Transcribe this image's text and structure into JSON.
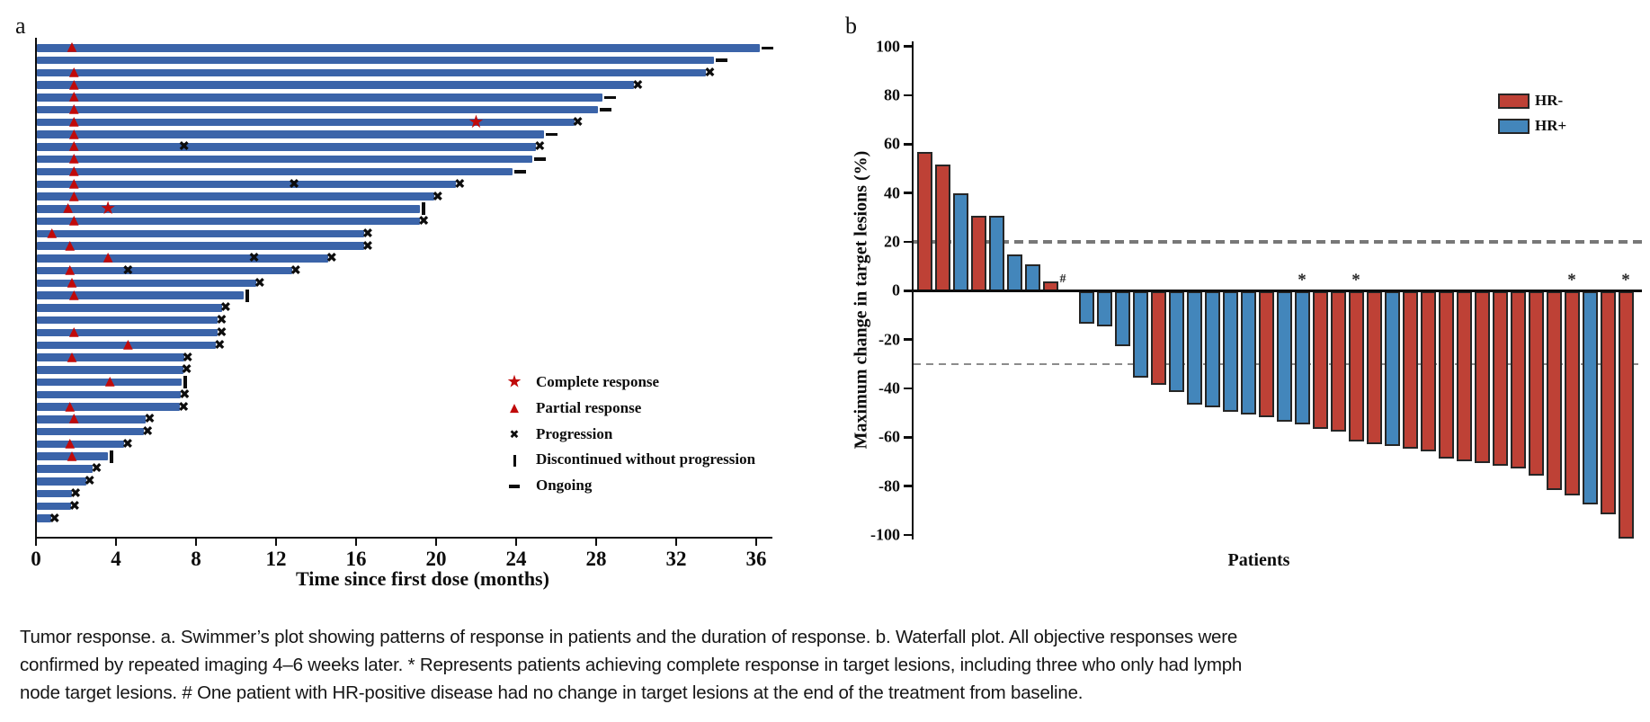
{
  "figure_title": "Tumor response",
  "panel_a": {
    "label": "a",
    "xlabel": "Time since first dose (months)"
  },
  "panel_b": {
    "label": "b",
    "ylabel": "Maximum change in target lesions (%)",
    "xlabel": "Patients",
    "legend": [
      {
        "label": "HR-",
        "color": "#BE4136"
      },
      {
        "label": "HR+",
        "color": "#4386BB"
      }
    ]
  },
  "caption": {
    "line1": "Tumor response. a. Swimmer’s plot showing patterns of response in patients and the duration of response. b. Waterfall plot. All objective responses were",
    "line2": "confirmed by repeated imaging 4–6 weeks later. * Represents patients achieving complete response in target lesions, including three who only had lymph",
    "line3": "node target lesions. # One patient with HR-positive disease had no change in target lesions at the end of the treatment from baseline."
  },
  "chart_data": [
    {
      "type": "bar",
      "subtype": "swimmer",
      "title": "",
      "xlabel": "Time since first dose (months)",
      "ylabel": "",
      "xlim": [
        0,
        37
      ],
      "x_ticks": [
        0,
        4,
        8,
        12,
        16,
        20,
        24,
        28,
        32,
        36
      ],
      "grid": false,
      "bar_color": "#3B64A9",
      "marker_color_response": "#C00A0A",
      "marker_color_event": "#0d0d0d",
      "legend_position": "right-middle",
      "legend": [
        {
          "marker": "star",
          "label": "Complete response"
        },
        {
          "marker": "triangle",
          "label": "Partial response"
        },
        {
          "marker": "x",
          "label": "Progression"
        },
        {
          "marker": "vbar",
          "label": "Discontinued without progression"
        },
        {
          "marker": "dash",
          "label": "Ongoing"
        }
      ],
      "patients": [
        {
          "months": 36.2,
          "end": "ongoing",
          "pr": 1.8,
          "cr": null,
          "progression_marks": []
        },
        {
          "months": 33.9,
          "end": "ongoing",
          "pr": null,
          "cr": null,
          "progression_marks": []
        },
        {
          "months": 33.5,
          "end": "progression",
          "pr": 1.9,
          "cr": null,
          "progression_marks": []
        },
        {
          "months": 29.9,
          "end": "progression",
          "pr": 1.9,
          "cr": null,
          "progression_marks": []
        },
        {
          "months": 28.3,
          "end": "ongoing",
          "pr": 1.9,
          "cr": null,
          "progression_marks": []
        },
        {
          "months": 28.1,
          "end": "ongoing",
          "pr": 1.9,
          "cr": null,
          "progression_marks": []
        },
        {
          "months": 26.9,
          "end": "progression",
          "pr": 1.9,
          "cr": 22,
          "progression_marks": []
        },
        {
          "months": 25.4,
          "end": "ongoing",
          "pr": 1.9,
          "cr": null,
          "progression_marks": []
        },
        {
          "months": 25.0,
          "end": "progression",
          "pr": 1.9,
          "cr": null,
          "progression_marks": [
            7.4
          ]
        },
        {
          "months": 24.8,
          "end": "ongoing",
          "pr": 1.9,
          "cr": null,
          "progression_marks": []
        },
        {
          "months": 23.8,
          "end": "ongoing",
          "pr": 1.9,
          "cr": null,
          "progression_marks": []
        },
        {
          "months": 21.0,
          "end": "progression",
          "pr": 1.9,
          "cr": null,
          "progression_marks": [
            12.9
          ]
        },
        {
          "months": 19.9,
          "end": "progression",
          "pr": 1.9,
          "cr": null,
          "progression_marks": []
        },
        {
          "months": 19.2,
          "end": "discontinued",
          "pr": 1.6,
          "cr": 3.6,
          "progression_marks": []
        },
        {
          "months": 19.2,
          "end": "progression",
          "pr": 1.9,
          "cr": null,
          "progression_marks": []
        },
        {
          "months": 16.4,
          "end": "progression",
          "pr": 0.8,
          "cr": null,
          "progression_marks": []
        },
        {
          "months": 16.4,
          "end": "progression",
          "pr": 1.7,
          "cr": null,
          "progression_marks": []
        },
        {
          "months": 14.6,
          "end": "progression",
          "pr": 3.6,
          "cr": null,
          "progression_marks": [
            10.9
          ]
        },
        {
          "months": 12.8,
          "end": "progression",
          "pr": 1.7,
          "cr": null,
          "progression_marks": [
            4.6
          ]
        },
        {
          "months": 11.0,
          "end": "progression",
          "pr": 1.8,
          "cr": null,
          "progression_marks": []
        },
        {
          "months": 10.4,
          "end": "discontinued",
          "pr": 1.9,
          "cr": null,
          "progression_marks": []
        },
        {
          "months": 9.3,
          "end": "progression",
          "pr": null,
          "cr": null,
          "progression_marks": []
        },
        {
          "months": 9.1,
          "end": "progression",
          "pr": null,
          "cr": null,
          "progression_marks": []
        },
        {
          "months": 9.1,
          "end": "progression",
          "pr": 1.9,
          "cr": null,
          "progression_marks": []
        },
        {
          "months": 9.0,
          "end": "progression",
          "pr": 4.6,
          "cr": null,
          "progression_marks": []
        },
        {
          "months": 7.4,
          "end": "progression",
          "pr": 1.8,
          "cr": null,
          "progression_marks": []
        },
        {
          "months": 7.35,
          "end": "progression",
          "pr": null,
          "cr": null,
          "progression_marks": []
        },
        {
          "months": 7.3,
          "end": "discontinued",
          "pr": 3.7,
          "cr": null,
          "progression_marks": []
        },
        {
          "months": 7.25,
          "end": "progression",
          "pr": null,
          "cr": null,
          "progression_marks": []
        },
        {
          "months": 7.2,
          "end": "progression",
          "pr": 1.7,
          "cr": null,
          "progression_marks": []
        },
        {
          "months": 5.5,
          "end": "progression",
          "pr": 1.9,
          "cr": null,
          "progression_marks": []
        },
        {
          "months": 5.4,
          "end": "progression",
          "pr": null,
          "cr": null,
          "progression_marks": []
        },
        {
          "months": 4.4,
          "end": "progression",
          "pr": 1.7,
          "cr": null,
          "progression_marks": []
        },
        {
          "months": 3.6,
          "end": "discontinued",
          "pr": 1.8,
          "cr": null,
          "progression_marks": []
        },
        {
          "months": 2.85,
          "end": "progression",
          "pr": null,
          "cr": null,
          "progression_marks": []
        },
        {
          "months": 2.5,
          "end": "progression",
          "pr": null,
          "cr": null,
          "progression_marks": []
        },
        {
          "months": 1.8,
          "end": "progression",
          "pr": null,
          "cr": null,
          "progression_marks": []
        },
        {
          "months": 1.75,
          "end": "progression",
          "pr": null,
          "cr": null,
          "progression_marks": []
        },
        {
          "months": 0.75,
          "end": "progression",
          "pr": null,
          "cr": null,
          "progression_marks": []
        }
      ]
    },
    {
      "type": "bar",
      "subtype": "waterfall",
      "title": "",
      "xlabel": "Patients",
      "ylabel": "Maximum change in target lesions (%)",
      "ylim": [
        -100,
        100
      ],
      "y_ticks": [
        100,
        80,
        60,
        40,
        20,
        0,
        -20,
        -40,
        -60,
        -80,
        -100
      ],
      "grid": false,
      "reference_lines": [
        20,
        -30
      ],
      "legend_position": "top-right",
      "groups": [
        {
          "label": "HR-",
          "color": "#BE4136"
        },
        {
          "label": "HR+",
          "color": "#4386BB"
        }
      ],
      "patients": [
        {
          "value": 56,
          "group": "HR-",
          "annotation": null
        },
        {
          "value": 51,
          "group": "HR-",
          "annotation": null
        },
        {
          "value": 39,
          "group": "HR+",
          "annotation": null
        },
        {
          "value": 30,
          "group": "HR-",
          "annotation": null
        },
        {
          "value": 30,
          "group": "HR+",
          "annotation": null
        },
        {
          "value": 14,
          "group": "HR+",
          "annotation": null
        },
        {
          "value": 10,
          "group": "HR+",
          "annotation": null
        },
        {
          "value": 3,
          "group": "HR-",
          "annotation": null
        },
        {
          "value": 0,
          "group": "HR+",
          "annotation": "#"
        },
        {
          "value": -12,
          "group": "HR+",
          "annotation": null
        },
        {
          "value": -13,
          "group": "HR+",
          "annotation": null
        },
        {
          "value": -21,
          "group": "HR+",
          "annotation": null
        },
        {
          "value": -34,
          "group": "HR+",
          "annotation": null
        },
        {
          "value": -37,
          "group": "HR-",
          "annotation": null
        },
        {
          "value": -40,
          "group": "HR+",
          "annotation": null
        },
        {
          "value": -45,
          "group": "HR+",
          "annotation": null
        },
        {
          "value": -46,
          "group": "HR+",
          "annotation": null
        },
        {
          "value": -48,
          "group": "HR+",
          "annotation": null
        },
        {
          "value": -49,
          "group": "HR+",
          "annotation": null
        },
        {
          "value": -50,
          "group": "HR-",
          "annotation": null
        },
        {
          "value": -52,
          "group": "HR+",
          "annotation": null
        },
        {
          "value": -53,
          "group": "HR+",
          "annotation": "*"
        },
        {
          "value": -55,
          "group": "HR-",
          "annotation": null
        },
        {
          "value": -56,
          "group": "HR-",
          "annotation": null
        },
        {
          "value": -60,
          "group": "HR-",
          "annotation": "*"
        },
        {
          "value": -61,
          "group": "HR-",
          "annotation": null
        },
        {
          "value": -62,
          "group": "HR+",
          "annotation": null
        },
        {
          "value": -63,
          "group": "HR-",
          "annotation": null
        },
        {
          "value": -64,
          "group": "HR-",
          "annotation": null
        },
        {
          "value": -67,
          "group": "HR-",
          "annotation": null
        },
        {
          "value": -68,
          "group": "HR-",
          "annotation": null
        },
        {
          "value": -69,
          "group": "HR-",
          "annotation": null
        },
        {
          "value": -70,
          "group": "HR-",
          "annotation": null
        },
        {
          "value": -71,
          "group": "HR-",
          "annotation": null
        },
        {
          "value": -74,
          "group": "HR-",
          "annotation": null
        },
        {
          "value": -80,
          "group": "HR-",
          "annotation": null
        },
        {
          "value": -82,
          "group": "HR-",
          "annotation": "*"
        },
        {
          "value": -86,
          "group": "HR+",
          "annotation": null
        },
        {
          "value": -90,
          "group": "HR-",
          "annotation": null
        },
        {
          "value": -100,
          "group": "HR-",
          "annotation": "*"
        }
      ]
    }
  ]
}
